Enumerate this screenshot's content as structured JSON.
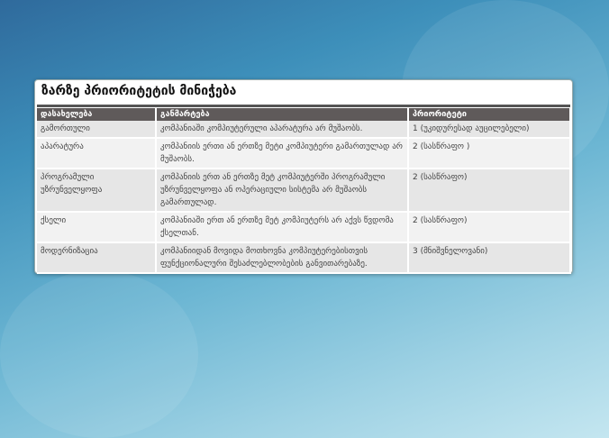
{
  "title": "ზარზე პრიორიტეტის მინიჭება",
  "columns": [
    "დასახელება",
    "განმარტება",
    "პრიორიტეტი"
  ],
  "rows": [
    {
      "name": "გამორთული",
      "desc": "კომპანიაში კომპიუტერული აპარატურა არ მუშაობს.",
      "priority": "1 (უკიდურესად აუცილებელი)"
    },
    {
      "name": "აპარატურა",
      "desc": "კომპანიის ერთი ან ერთზე მეტი კომპიუტერი გამართულად არ მუშაობს.",
      "priority": "2 (სასწრაფო )"
    },
    {
      "name": "პროგრამული უზრუნველყოფა",
      "desc": "კომპანიის ერთ ან ერთზე მეტ კომპიუტერში პროგრამული უზრუნველყოფა ან ოპერაციული სისტემა არ მუშაობს გამართულად.",
      "priority": "2 (სასწრაფო)"
    },
    {
      "name": "ქსელი",
      "desc": "კომპანიაში ერთ ან ერთზე მეტ კომპიუტერს არ აქვს წვდომა ქსელთან.",
      "priority": "2 (სასწრაფო)"
    },
    {
      "name": "მოდერნიზაცია",
      "desc": "კომპანიიდან მოვიდა მოთხოვნა კომპიუტერებისთვის ფუნქციონალური შესაძლებლობების განვითარებაზე.",
      "priority": "3 (მნიშვნელოვანი)"
    }
  ]
}
